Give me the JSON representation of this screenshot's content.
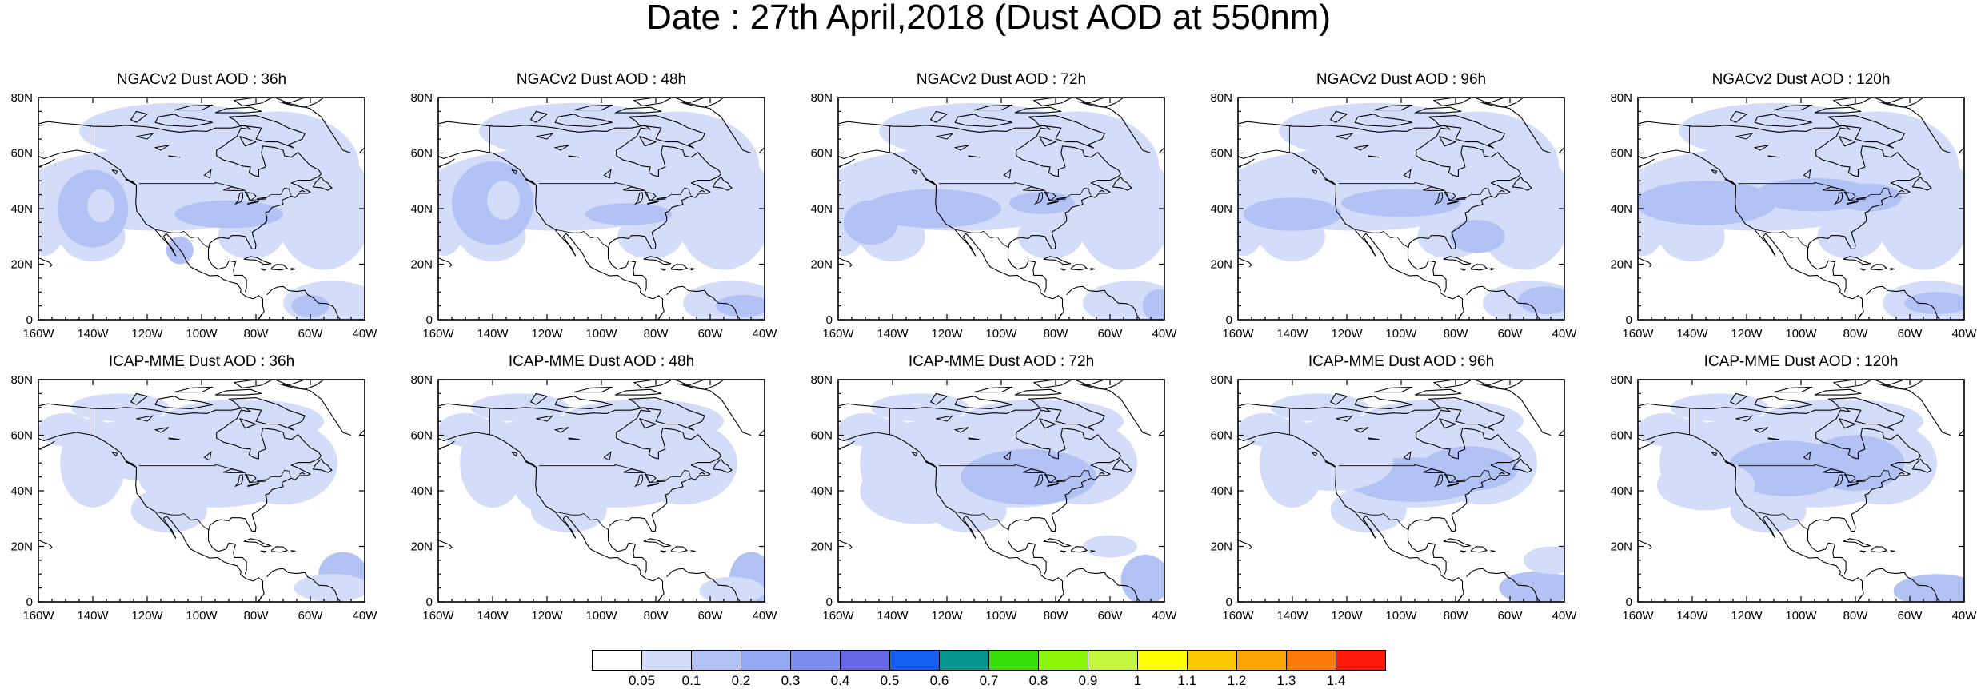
{
  "title": "Date : 27th April,2018 (Dust AOD at 550nm)",
  "panels": [
    {
      "title": "NGACv2 Dust AOD : 36h",
      "model": "NGAC",
      "variant": 0
    },
    {
      "title": "NGACv2 Dust AOD : 48h",
      "model": "NGAC",
      "variant": 1
    },
    {
      "title": "NGACv2 Dust AOD : 72h",
      "model": "NGAC",
      "variant": 2
    },
    {
      "title": "NGACv2 Dust AOD : 96h",
      "model": "NGAC",
      "variant": 3
    },
    {
      "title": "NGACv2 Dust AOD : 120h",
      "model": "NGAC",
      "variant": 4
    },
    {
      "title": "ICAP-MME Dust AOD : 36h",
      "model": "ICAP",
      "variant": 0
    },
    {
      "title": "ICAP-MME Dust AOD : 48h",
      "model": "ICAP",
      "variant": 1
    },
    {
      "title": "ICAP-MME Dust AOD : 72h",
      "model": "ICAP",
      "variant": 2
    },
    {
      "title": "ICAP-MME Dust AOD : 96h",
      "model": "ICAP",
      "variant": 3
    },
    {
      "title": "ICAP-MME Dust AOD : 120h",
      "model": "ICAP",
      "variant": 4
    }
  ],
  "map": {
    "lon_range": [
      -160,
      -40
    ],
    "lat_range": [
      0,
      80
    ],
    "x_ticks": [
      {
        "value": -160,
        "label": "160W"
      },
      {
        "value": -140,
        "label": "140W"
      },
      {
        "value": -120,
        "label": "120W"
      },
      {
        "value": -100,
        "label": "100W"
      },
      {
        "value": -80,
        "label": "80W"
      },
      {
        "value": -60,
        "label": "60W"
      },
      {
        "value": -40,
        "label": "40W"
      }
    ],
    "y_ticks": [
      {
        "value": 0,
        "label": "0"
      },
      {
        "value": 20,
        "label": "20N"
      },
      {
        "value": 40,
        "label": "40N"
      },
      {
        "value": 60,
        "label": "60N"
      },
      {
        "value": 80,
        "label": "80N"
      }
    ]
  },
  "colorbar": {
    "labels": [
      "0.05",
      "0.1",
      "0.2",
      "0.3",
      "0.4",
      "0.5",
      "0.6",
      "0.7",
      "0.8",
      "0.9",
      "1",
      "1.1",
      "1.2",
      "1.3",
      "1.4"
    ],
    "colors": [
      "#ffffff",
      "#d3dcf9",
      "#b3c2f5",
      "#94a7f2",
      "#7b8bee",
      "#6466e6",
      "#1560f0",
      "#04958e",
      "#37df0a",
      "#8af50b",
      "#c3f63d",
      "#fcfe03",
      "#fec705",
      "#fea506",
      "#fc7a07",
      "#fe1a0b"
    ]
  }
}
